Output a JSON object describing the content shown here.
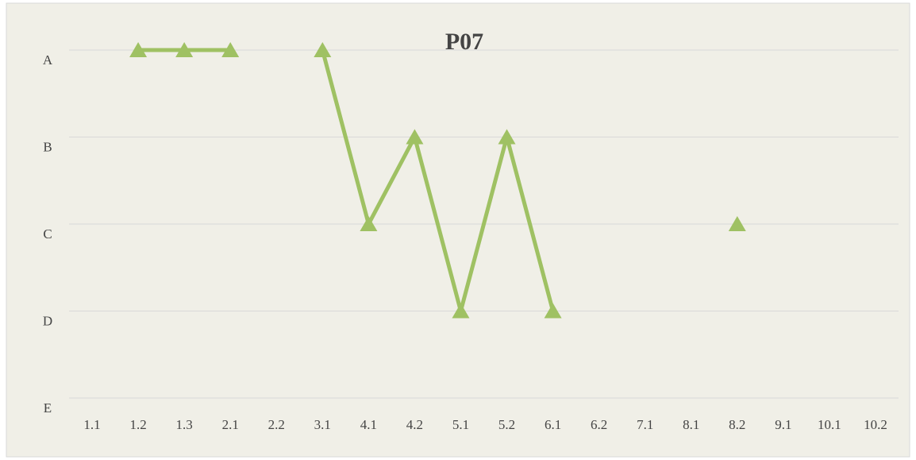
{
  "chart_data": {
    "type": "line",
    "title": "P07",
    "categories": [
      "1.1",
      "1.2",
      "1.3",
      "2.1",
      "2.2",
      "3.1",
      "4.1",
      "4.2",
      "5.1",
      "5.2",
      "6.1",
      "6.2",
      "7.1",
      "8.1",
      "8.2",
      "9.1",
      "10.1",
      "10.2"
    ],
    "y_categories": [
      "A",
      "B",
      "C",
      "D",
      "E"
    ],
    "series": [
      {
        "color": "#9fc163",
        "values": [
          null,
          "A",
          "A",
          "A",
          null,
          "A",
          "C",
          "B",
          "D",
          "B",
          "D",
          null,
          null,
          null,
          "C",
          null,
          null,
          null
        ]
      }
    ],
    "grid": true
  }
}
